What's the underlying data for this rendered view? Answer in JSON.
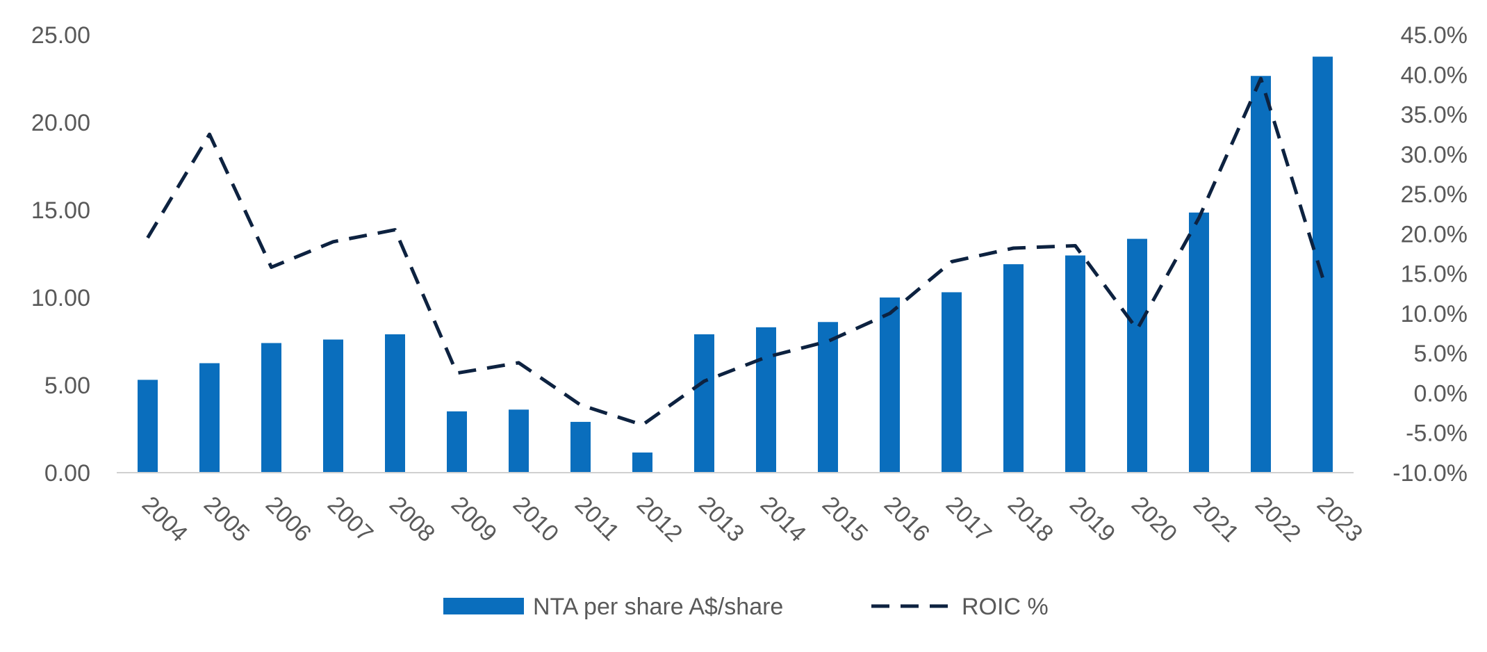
{
  "chart_data": {
    "type": "bar",
    "title": "",
    "categories": [
      "2004",
      "2005",
      "2006",
      "2007",
      "2008",
      "2009",
      "2010",
      "2011",
      "2012",
      "2013",
      "2014",
      "2015",
      "2016",
      "2017",
      "2018",
      "2019",
      "2020",
      "2021",
      "2022",
      "2023"
    ],
    "series": [
      {
        "name": "NTA per share A$/share",
        "type": "bar",
        "axis": "left",
        "color": "#0a6ebd",
        "values": [
          5.3,
          6.25,
          7.4,
          7.6,
          7.9,
          3.5,
          3.6,
          2.9,
          1.15,
          7.9,
          8.3,
          8.6,
          10.0,
          10.3,
          11.9,
          12.4,
          13.35,
          14.85,
          22.65,
          23.75
        ]
      },
      {
        "name": "ROIC %",
        "type": "line",
        "style": "dashed",
        "axis": "right",
        "color": "#0d2240",
        "values": [
          19.5,
          32.5,
          15.8,
          19.0,
          20.5,
          2.5,
          3.8,
          -1.5,
          -4.0,
          1.5,
          4.5,
          6.5,
          10.0,
          16.5,
          18.2,
          18.5,
          8.0,
          22.0,
          39.5,
          14.5
        ]
      }
    ],
    "y_left": {
      "ylim": [
        0,
        25
      ],
      "ticks": [
        0,
        5,
        10,
        15,
        20,
        25
      ],
      "tick_labels": [
        "0.00",
        "5.00",
        "10.00",
        "15.00",
        "20.00",
        "25.00"
      ]
    },
    "y_right": {
      "ylim": [
        -10,
        45
      ],
      "ticks": [
        -10,
        -5,
        0,
        5,
        10,
        15,
        20,
        25,
        30,
        35,
        40,
        45
      ],
      "tick_labels": [
        "-10.0%",
        "-5.0%",
        "0.0%",
        "5.0%",
        "10.0%",
        "15.0%",
        "20.0%",
        "25.0%",
        "30.0%",
        "35.0%",
        "40.0%",
        "45.0%"
      ]
    },
    "grid": false,
    "legend_position": "bottom-center"
  }
}
